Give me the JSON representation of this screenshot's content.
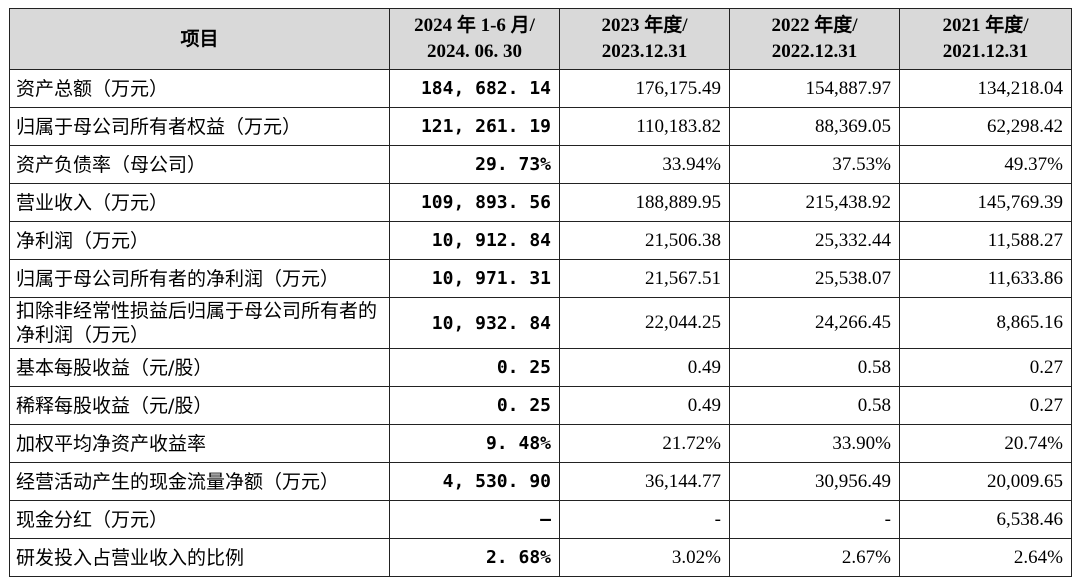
{
  "table": {
    "header": [
      [
        "项目"
      ],
      [
        "2024 年 1-6 月/",
        "2024. 06. 30"
      ],
      [
        "2023 年度/",
        "2023.12.31"
      ],
      [
        "2022 年度/",
        "2022.12.31"
      ],
      [
        "2021 年度/",
        "2021.12.31"
      ]
    ],
    "rows": [
      [
        "资产总额（万元）",
        "184, 682. 14",
        "176,175.49",
        "154,887.97",
        "134,218.04"
      ],
      [
        "归属于母公司所有者权益（万元）",
        "121, 261. 19",
        "110,183.82",
        "88,369.05",
        "62,298.42"
      ],
      [
        "资产负债率（母公司）",
        "29. 73%",
        "33.94%",
        "37.53%",
        "49.37%"
      ],
      [
        "营业收入（万元）",
        "109, 893. 56",
        "188,889.95",
        "215,438.92",
        "145,769.39"
      ],
      [
        "净利润（万元）",
        "10, 912. 84",
        "21,506.38",
        "25,332.44",
        "11,588.27"
      ],
      [
        "归属于母公司所有者的净利润（万元）",
        "10, 971. 31",
        "21,567.51",
        "25,538.07",
        "11,633.86"
      ],
      [
        "扣除非经常性损益后归属于母公司所有者的净利润（万元）",
        "10, 932. 84",
        "22,044.25",
        "24,266.45",
        "8,865.16"
      ],
      [
        "基本每股收益（元/股）",
        "0. 25",
        "0.49",
        "0.58",
        "0.27"
      ],
      [
        "稀释每股收益（元/股）",
        "0. 25",
        "0.49",
        "0.58",
        "0.27"
      ],
      [
        "加权平均净资产收益率",
        "9. 48%",
        "21.72%",
        "33.90%",
        "20.74%"
      ],
      [
        "经营活动产生的现金流量净额（万元）",
        "4, 530. 90",
        "36,144.77",
        "30,956.49",
        "20,009.65"
      ],
      [
        "现金分红（万元）",
        "–",
        "-",
        "-",
        "6,538.46"
      ],
      [
        "研发投入占营业收入的比例",
        "2. 68%",
        "3.02%",
        "2.67%",
        "2.64%"
      ]
    ]
  }
}
